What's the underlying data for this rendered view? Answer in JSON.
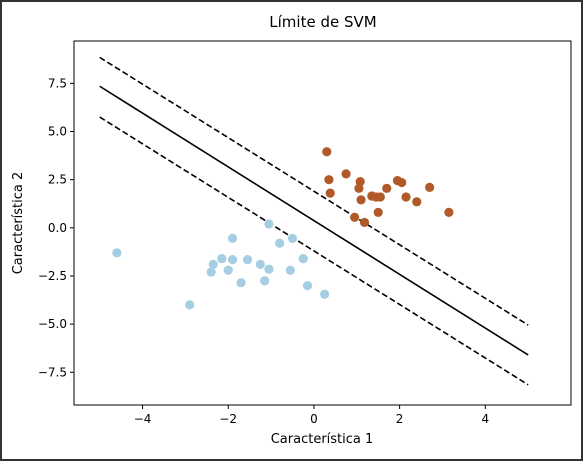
{
  "chart_data": {
    "type": "scatter",
    "title": "Límite de SVM",
    "xlabel": "Característica 1",
    "ylabel": "Característica 2",
    "xlim": [
      -5.6,
      6.0
    ],
    "ylim": [
      -9.2,
      9.7
    ],
    "xticks": [
      -4,
      -2,
      0,
      2,
      4
    ],
    "yticks": [
      -7.5,
      -5.0,
      -2.5,
      0.0,
      2.5,
      5.0,
      7.5
    ],
    "xtick_labels": [
      "−4",
      "−2",
      "0",
      "2",
      "4"
    ],
    "ytick_labels": [
      "−7.5",
      "−5.0",
      "−2.5",
      "0.0",
      "2.5",
      "5.0",
      "7.5"
    ],
    "grid": false,
    "legend": "none",
    "series": [
      {
        "color": "#a6cee3",
        "points": [
          [
            -4.6,
            -1.3
          ],
          [
            -2.9,
            -4.0
          ],
          [
            -2.4,
            -2.3
          ],
          [
            -2.35,
            -1.9
          ],
          [
            -2.15,
            -1.6
          ],
          [
            -2.0,
            -2.2
          ],
          [
            -1.9,
            -1.65
          ],
          [
            -1.9,
            -0.55
          ],
          [
            -1.7,
            -2.85
          ],
          [
            -1.55,
            -1.65
          ],
          [
            -1.25,
            -1.9
          ],
          [
            -1.15,
            -2.75
          ],
          [
            -1.05,
            -2.15
          ],
          [
            -1.05,
            0.2
          ],
          [
            -0.8,
            -0.8
          ],
          [
            -0.55,
            -2.2
          ],
          [
            -0.5,
            -0.55
          ],
          [
            -0.25,
            -1.6
          ],
          [
            -0.15,
            -3.0
          ],
          [
            0.25,
            -3.45
          ]
        ]
      },
      {
        "color": "#b15928",
        "points": [
          [
            0.3,
            3.95
          ],
          [
            0.35,
            2.5
          ],
          [
            0.38,
            1.8
          ],
          [
            0.75,
            2.8
          ],
          [
            0.95,
            0.55
          ],
          [
            1.05,
            2.05
          ],
          [
            1.08,
            2.4
          ],
          [
            1.1,
            1.45
          ],
          [
            1.18,
            0.28
          ],
          [
            1.35,
            1.65
          ],
          [
            1.45,
            1.6
          ],
          [
            1.5,
            0.8
          ],
          [
            1.55,
            1.6
          ],
          [
            1.7,
            2.05
          ],
          [
            1.95,
            2.45
          ],
          [
            2.05,
            2.35
          ],
          [
            2.15,
            1.6
          ],
          [
            2.4,
            1.35
          ],
          [
            2.7,
            2.1
          ],
          [
            3.15,
            0.8
          ]
        ]
      }
    ],
    "lines": [
      {
        "kind": "decision-boundary",
        "style": "solid",
        "x": [
          -5.0,
          5.0
        ],
        "y": [
          7.35,
          -6.6
        ]
      },
      {
        "kind": "margin-upper",
        "style": "dashed",
        "x": [
          -5.0,
          5.0
        ],
        "y": [
          8.85,
          -5.05
        ]
      },
      {
        "kind": "margin-lower",
        "style": "dashed",
        "x": [
          -5.0,
          5.0
        ],
        "y": [
          5.75,
          -8.15
        ]
      }
    ]
  }
}
